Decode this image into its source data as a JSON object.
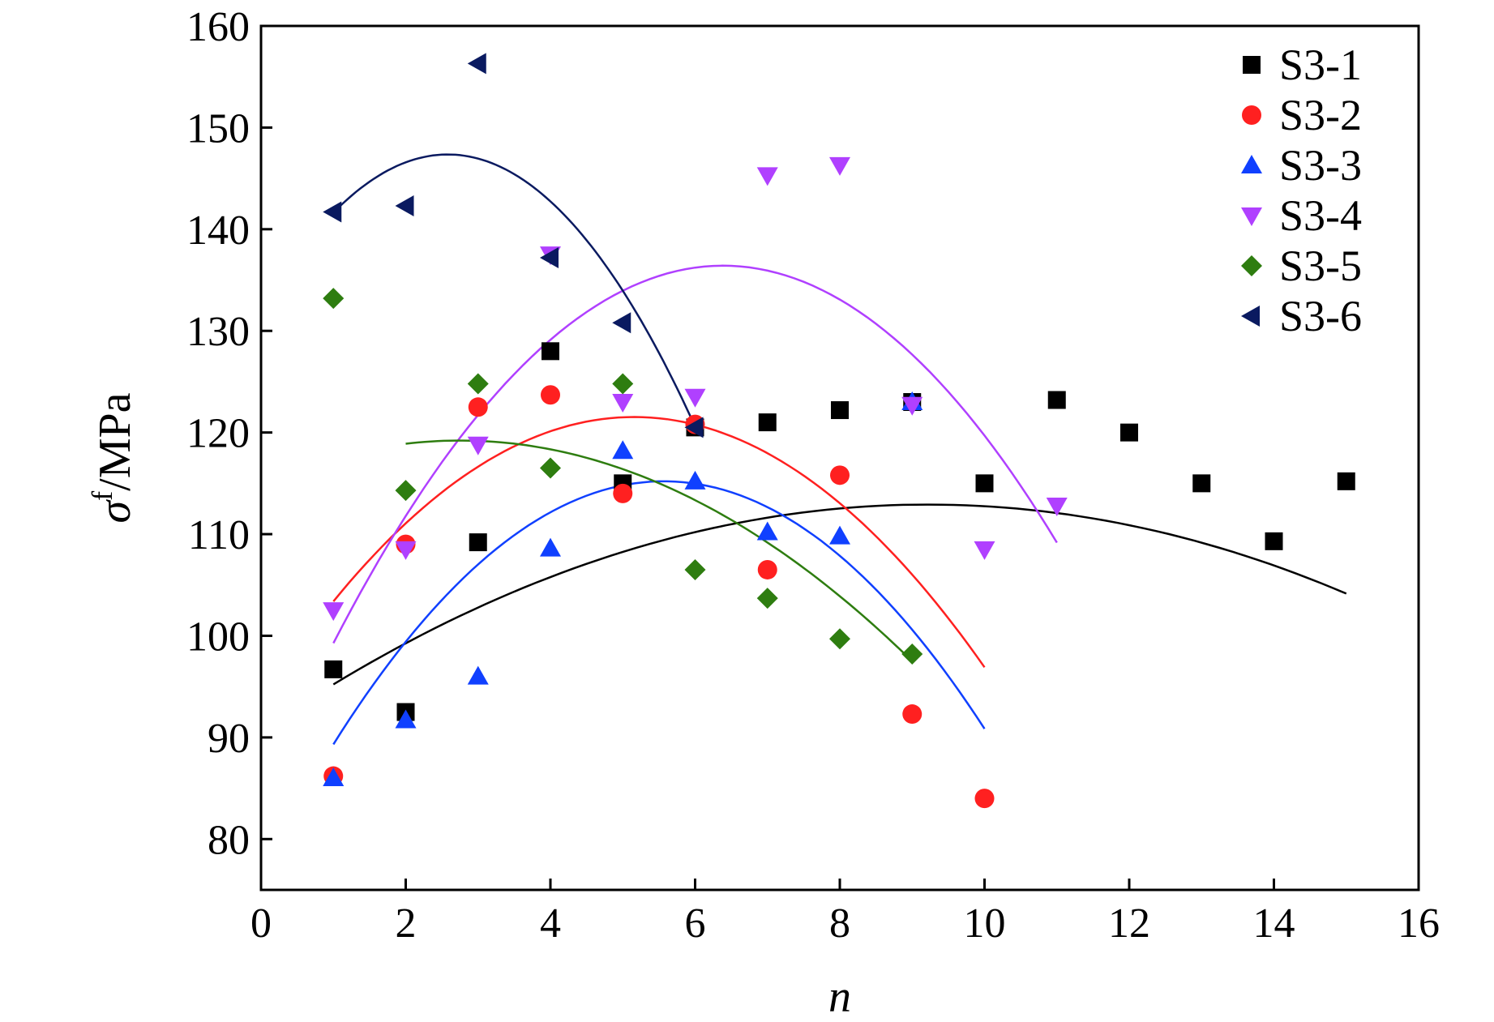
{
  "chart_data": {
    "type": "scatter",
    "xlabel": "n",
    "ylabel_main": "σ",
    "ylabel_sup": "f",
    "ylabel_unit": "/MPa",
    "xlim": [
      0,
      16
    ],
    "ylim": [
      75,
      160
    ],
    "xticks": [
      "0",
      "2",
      "4",
      "6",
      "8",
      "10",
      "12",
      "14",
      "16"
    ],
    "yticks": [
      "80",
      "90",
      "100",
      "110",
      "120",
      "130",
      "140",
      "150",
      "160"
    ],
    "grid": false,
    "legend_position": "top-right",
    "series": [
      {
        "name": "S3-1",
        "marker": "square",
        "color": "#000000",
        "points": [
          [
            1,
            96.7
          ],
          [
            2,
            92.5
          ],
          [
            3,
            109.2
          ],
          [
            4,
            128
          ],
          [
            5,
            115
          ],
          [
            6,
            120.5
          ],
          [
            7,
            121
          ],
          [
            8,
            122.2
          ],
          [
            9,
            123
          ],
          [
            10,
            115
          ],
          [
            11,
            123.2
          ],
          [
            12,
            120
          ],
          [
            13,
            115
          ],
          [
            14,
            109.3
          ],
          [
            15,
            115.2
          ]
        ],
        "fit": {
          "coef": [
            -0.262,
            4.83,
            90.65
          ],
          "range": [
            1,
            15
          ]
        }
      },
      {
        "name": "S3-2",
        "marker": "circle",
        "color": "#ff2020",
        "points": [
          [
            1,
            86.2
          ],
          [
            2,
            109
          ],
          [
            3,
            122.5
          ],
          [
            4,
            123.7
          ],
          [
            5,
            114
          ],
          [
            6,
            120.8
          ],
          [
            7,
            106.5
          ],
          [
            8,
            115.8
          ],
          [
            9,
            92.3
          ],
          [
            10,
            84
          ]
        ],
        "fit": {
          "coef": [
            -1.05,
            10.83,
            93.6
          ],
          "range": [
            1,
            10
          ]
        }
      },
      {
        "name": "S3-3",
        "marker": "triangle-up",
        "color": "#1040ff",
        "points": [
          [
            1,
            86
          ],
          [
            2,
            91.7
          ],
          [
            3,
            96
          ],
          [
            4,
            108.6
          ],
          [
            5,
            118.2
          ],
          [
            6,
            115.2
          ],
          [
            7,
            110.2
          ],
          [
            8,
            109.8
          ],
          [
            9,
            123
          ]
        ],
        "fit": {
          "coef": [
            -1.24,
            13.81,
            76.75
          ],
          "range": [
            1,
            10
          ]
        }
      },
      {
        "name": "S3-4",
        "marker": "triangle-down",
        "color": "#b040ff",
        "points": [
          [
            1,
            102.5
          ],
          [
            2,
            108.5
          ],
          [
            3,
            118.8
          ],
          [
            4,
            137.5
          ],
          [
            5,
            123
          ],
          [
            6,
            123.5
          ],
          [
            7,
            145.3
          ],
          [
            8,
            146.3
          ],
          [
            9,
            122.7
          ],
          [
            10,
            108.5
          ],
          [
            11,
            112.8
          ]
        ],
        "fit": {
          "coef": [
            -1.28,
            16.35,
            84.2
          ],
          "range": [
            1,
            11
          ]
        }
      },
      {
        "name": "S3-5",
        "marker": "diamond",
        "color": "#2e7d10",
        "points": [
          [
            1,
            133.2
          ],
          [
            2,
            114.3
          ],
          [
            3,
            124.8
          ],
          [
            4,
            116.5
          ],
          [
            5,
            124.8
          ],
          [
            6,
            106.5
          ],
          [
            7,
            103.7
          ],
          [
            8,
            99.7
          ],
          [
            9,
            98.2
          ]
        ],
        "fit": {
          "coef": [
            -0.556,
            3.06,
            115.0
          ],
          "range": [
            2,
            9
          ]
        }
      },
      {
        "name": "S3-6",
        "marker": "triangle-left",
        "color": "#0a1a60",
        "points": [
          [
            1,
            141.7
          ],
          [
            2,
            142.3
          ],
          [
            3,
            156.3
          ],
          [
            4,
            137.2
          ],
          [
            5,
            130.8
          ],
          [
            6,
            120.5
          ]
        ],
        "fit": {
          "coef": [
            -2.29,
            11.82,
            132.1
          ],
          "range": [
            1,
            6
          ]
        }
      }
    ]
  }
}
